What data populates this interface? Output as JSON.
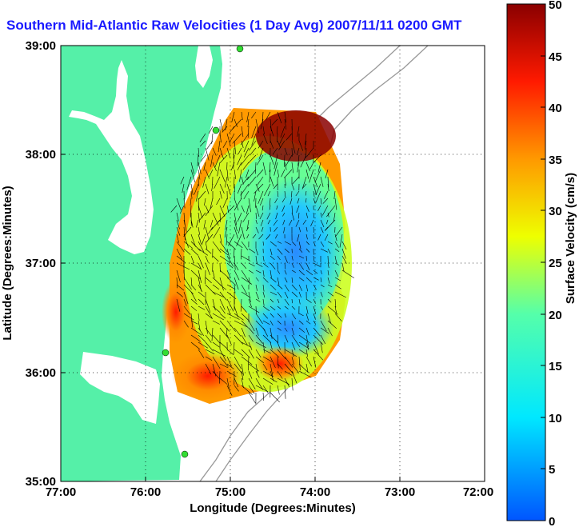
{
  "title": "Southern Mid-Atlantic Raw Velocities (1 Day Avg) 2007/11/11 0200 GMT",
  "xlabel": "Longitude (Degrees:Minutes)",
  "ylabel": "Latitude (Degrees:Minutes)",
  "x_ticks": [
    "77:00",
    "76:00",
    "75:00",
    "74:00",
    "73:00",
    "72:00"
  ],
  "y_ticks": [
    "39:00",
    "38:00",
    "37:00",
    "36:00",
    "35:00"
  ],
  "colorbar": {
    "label": "Surface Velocity (cm/s)",
    "ticks": [
      "50",
      "45",
      "40",
      "35",
      "30",
      "25",
      "20",
      "15",
      "10",
      "5",
      "0"
    ],
    "min": 0,
    "max": 50
  },
  "colors": {
    "land": "#55f0a8",
    "water": "#ffffff",
    "title": "#1a1aff",
    "station": "#33dd33"
  },
  "chart_data": {
    "type": "heatmap",
    "title": "Southern Mid-Atlantic Raw Velocities (1 Day Avg) 2007/11/11 0200 GMT",
    "xlabel": "Longitude (Degrees:Minutes)",
    "ylabel": "Latitude (Degrees:Minutes)",
    "xlim": [
      -77.0,
      -72.0
    ],
    "ylim": [
      35.0,
      39.0
    ],
    "colorbar_range": [
      0,
      50
    ],
    "grid": "dotted"
  }
}
